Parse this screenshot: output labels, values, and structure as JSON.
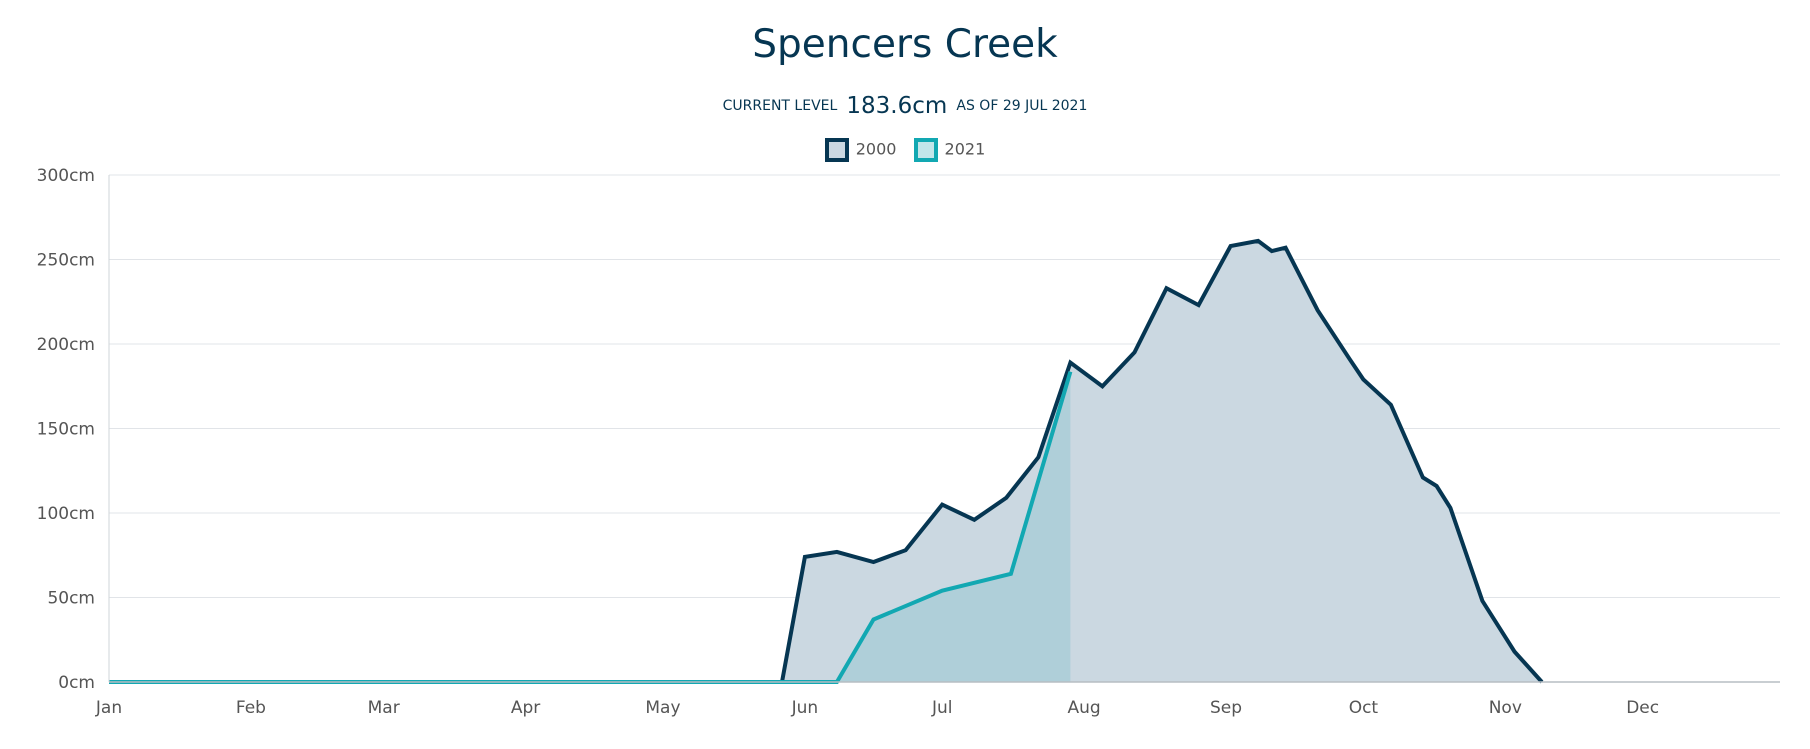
{
  "header": {
    "title": "Spencers Creek",
    "current_level_label": "CURRENT LEVEL",
    "current_level_value": "183.6cm",
    "as_of_label": "AS OF 29 JUL 2021"
  },
  "legend": {
    "items": [
      {
        "label": "2000",
        "stroke": "#063652",
        "fill": "#cbd8e1"
      },
      {
        "label": "2021",
        "stroke": "#12a8b2",
        "fill": "#c3e6ea"
      }
    ],
    "placement": "top-center"
  },
  "chart_data": {
    "type": "area",
    "title": "Spencers Creek",
    "xlabel": "",
    "ylabel": "",
    "x_unit": "day of year",
    "xlim": [
      1,
      366
    ],
    "ylim": [
      0,
      300
    ],
    "grid": true,
    "categories": [
      "Jan",
      "Feb",
      "Mar",
      "Apr",
      "May",
      "Jun",
      "Jul",
      "Aug",
      "Sep",
      "Oct",
      "Nov",
      "Dec"
    ],
    "x_tick_days": [
      1,
      32,
      61,
      92,
      122,
      153,
      183,
      214,
      245,
      275,
      306,
      336
    ],
    "y_ticks": [
      0,
      50,
      100,
      150,
      200,
      250,
      300
    ],
    "y_tick_labels": [
      "0cm",
      "50cm",
      "100cm",
      "150cm",
      "200cm",
      "250cm",
      "300cm"
    ],
    "series": [
      {
        "name": "2000",
        "color": "#063652",
        "fill": "#cbd8e1",
        "x": [
          1,
          148,
          153,
          160,
          168,
          175,
          183,
          190,
          197,
          204,
          211,
          218,
          225,
          232,
          239,
          246,
          252,
          255,
          258,
          265,
          272,
          275,
          281,
          288,
          291,
          294,
          301,
          308,
          314
        ],
        "y": [
          0,
          0,
          74,
          77,
          71,
          78,
          105,
          96,
          109,
          133,
          189,
          175,
          195,
          233,
          223,
          258,
          261,
          255,
          257,
          220,
          191,
          179,
          164,
          121,
          116,
          103,
          48,
          18,
          0
        ]
      },
      {
        "name": "2021",
        "color": "#12a8b2",
        "fill": "#a5ccd5",
        "x": [
          1,
          160,
          168,
          183,
          198,
          211
        ],
        "y": [
          0,
          0,
          37,
          54,
          64,
          183.6
        ]
      }
    ]
  }
}
